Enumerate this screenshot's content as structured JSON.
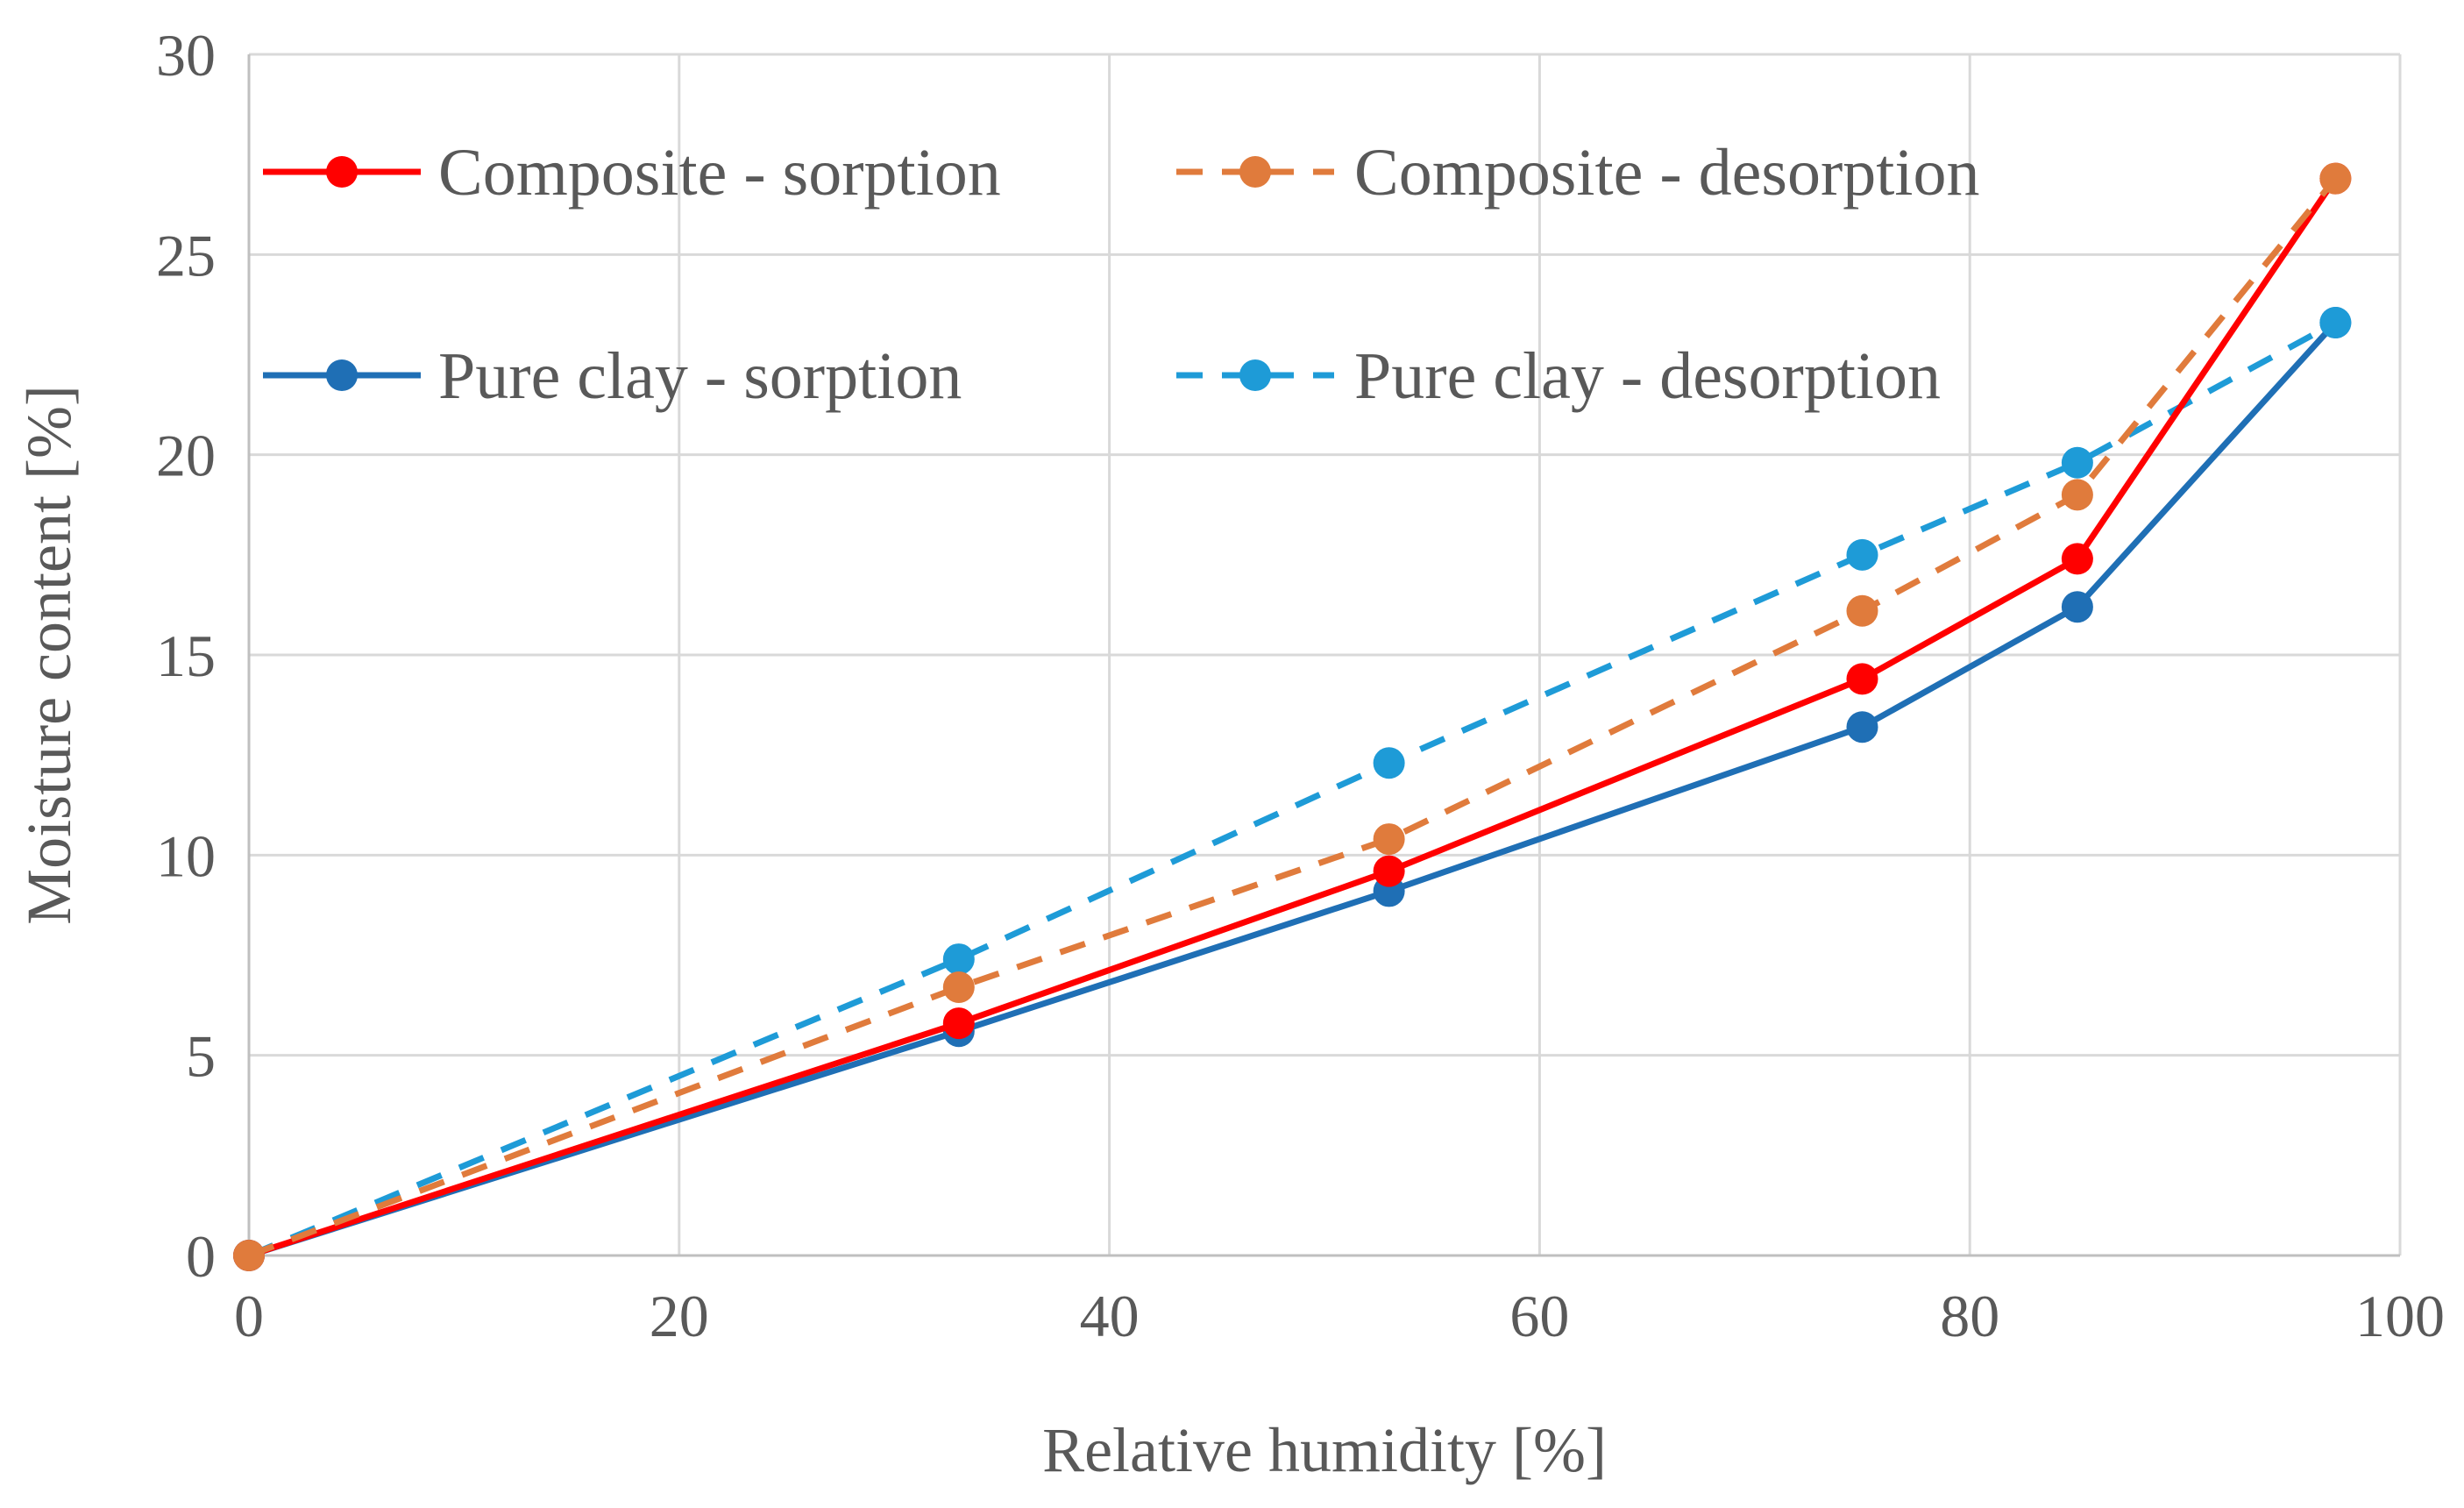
{
  "chart_data": {
    "type": "line",
    "title": "",
    "xlabel": "Relative humidity [%]",
    "ylabel": "Moisture content [%]",
    "xlim": [
      0,
      100
    ],
    "ylim": [
      0,
      30
    ],
    "xticks": [
      0,
      20,
      40,
      60,
      80,
      100
    ],
    "yticks": [
      0,
      5,
      10,
      15,
      20,
      25,
      30
    ],
    "grid": true,
    "legend_position": "top-left, inside plot, two columns",
    "series": [
      {
        "name": "Composite - sorption",
        "color": "#ff0000",
        "dashed": false,
        "x": [
          0,
          33,
          53,
          75,
          85,
          97
        ],
        "y": [
          0,
          5.8,
          9.6,
          14.4,
          17.4,
          26.9
        ]
      },
      {
        "name": "Composite - desorption",
        "color": "#e07b3c",
        "dashed": true,
        "x": [
          0,
          33,
          53,
          75,
          85,
          97
        ],
        "y": [
          0,
          6.7,
          10.4,
          16.1,
          19.0,
          26.9
        ]
      },
      {
        "name": "Pure clay - sorption",
        "color": "#1f6fb5",
        "dashed": false,
        "x": [
          0,
          33,
          53,
          75,
          85,
          97
        ],
        "y": [
          0,
          5.6,
          9.1,
          13.2,
          16.2,
          23.3
        ]
      },
      {
        "name": "Pure clay - desorption",
        "color": "#1e9bd7",
        "dashed": true,
        "x": [
          0,
          33,
          53,
          75,
          85,
          97
        ],
        "y": [
          0,
          7.4,
          12.3,
          17.5,
          19.8,
          23.3
        ]
      }
    ]
  }
}
